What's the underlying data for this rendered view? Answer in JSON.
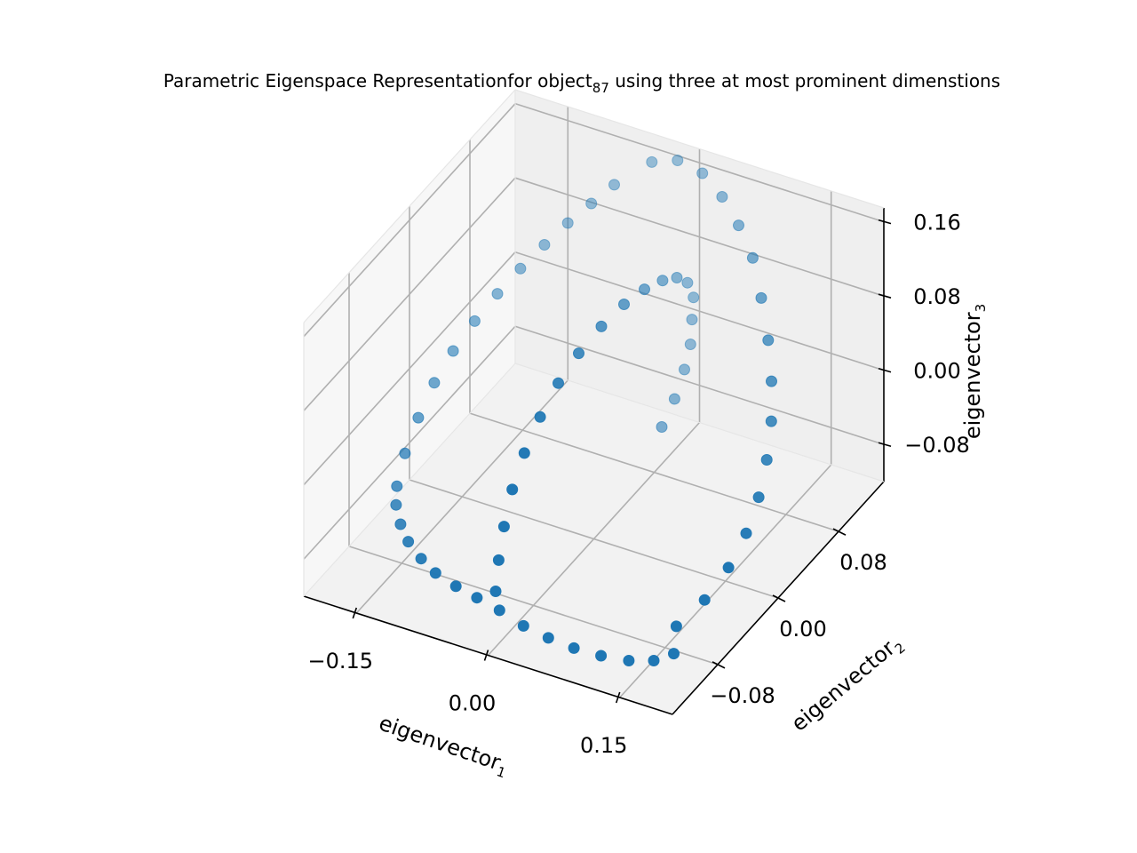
{
  "chart_data": {
    "type": "scatter3d",
    "title": {
      "before": "Parametric Eigenspace Representationfor object",
      "sub": "87",
      "after": " using three at most prominent dimenstions"
    },
    "xlabel": {
      "base": "eigenvector",
      "sub": "1"
    },
    "ylabel": {
      "base": "eigenvector",
      "sub": "2"
    },
    "zlabel": {
      "base": "eigenvector",
      "sub": "3"
    },
    "xlim": [
      -0.21,
      0.21
    ],
    "ylim": [
      -0.14,
      0.14
    ],
    "zlim": [
      -0.12,
      0.175
    ],
    "xticks": [
      {
        "value": -0.15,
        "label": "−0.15"
      },
      {
        "value": 0.0,
        "label": "0.00"
      },
      {
        "value": 0.15,
        "label": "0.15"
      }
    ],
    "yticks": [
      {
        "value": -0.08,
        "label": "−0.08"
      },
      {
        "value": 0.0,
        "label": "0.00"
      },
      {
        "value": 0.08,
        "label": "0.08"
      }
    ],
    "zticks": [
      {
        "value": -0.08,
        "label": "−0.08"
      },
      {
        "value": 0.0,
        "label": "0.00"
      },
      {
        "value": 0.08,
        "label": "0.08"
      },
      {
        "value": 0.16,
        "label": "0.16"
      }
    ],
    "grid": true,
    "marker_color": "#1f77b4",
    "points": [
      [
        0.0,
        -0.13,
        -0.06
      ],
      [
        0.0,
        -0.126,
        -0.03
      ],
      [
        0.0,
        -0.119,
        0.0
      ],
      [
        0.0,
        -0.108,
        0.03
      ],
      [
        0.0,
        -0.092,
        0.055
      ],
      [
        0.0,
        -0.071,
        0.075
      ],
      [
        0.0,
        -0.047,
        0.09
      ],
      [
        0.0,
        -0.02,
        0.098
      ],
      [
        0.0,
        0.01,
        0.1
      ],
      [
        0.0,
        0.04,
        0.097
      ],
      [
        0.0,
        0.067,
        0.089
      ],
      [
        0.0,
        0.091,
        0.077
      ],
      [
        0.0,
        0.11,
        0.063
      ],
      [
        0.0,
        0.124,
        0.045
      ],
      [
        0.0,
        0.132,
        0.022
      ],
      [
        0.0,
        0.13,
        0.0
      ],
      [
        0.0,
        0.128,
        -0.025
      ],
      [
        0.0,
        0.12,
        -0.045
      ],
      [
        0.0,
        0.107,
        -0.065
      ],
      [
        0.0,
        0.09,
        -0.08
      ],
      [
        0.0,
        -0.125,
        -0.085
      ],
      [
        0.03,
        -0.128,
        -0.09
      ],
      [
        0.06,
        -0.13,
        -0.092
      ],
      [
        0.09,
        -0.131,
        -0.093
      ],
      [
        0.12,
        -0.13,
        -0.093
      ],
      [
        0.15,
        -0.128,
        -0.091
      ],
      [
        0.175,
        -0.124,
        -0.087
      ],
      [
        0.19,
        -0.115,
        -0.083
      ],
      [
        -0.03,
        -0.12,
        -0.085
      ],
      [
        -0.06,
        -0.113,
        -0.088
      ],
      [
        -0.09,
        -0.105,
        -0.09
      ],
      [
        -0.115,
        -0.095,
        -0.091
      ],
      [
        -0.14,
        -0.083,
        -0.091
      ],
      [
        -0.16,
        -0.07,
        -0.09
      ],
      [
        -0.178,
        -0.055,
        -0.088
      ],
      [
        -0.19,
        -0.04,
        -0.085
      ],
      [
        -0.198,
        -0.02,
        -0.07
      ],
      [
        -0.2,
        0.0,
        -0.05
      ],
      [
        -0.199,
        0.02,
        -0.03
      ],
      [
        -0.193,
        0.038,
        -0.01
      ],
      [
        -0.183,
        0.055,
        0.01
      ],
      [
        -0.17,
        0.07,
        0.03
      ],
      [
        -0.155,
        0.083,
        0.05
      ],
      [
        -0.138,
        0.095,
        0.07
      ],
      [
        -0.12,
        0.105,
        0.09
      ],
      [
        -0.1,
        0.113,
        0.11
      ],
      [
        -0.08,
        0.12,
        0.13
      ],
      [
        0.18,
        -0.1,
        -0.07
      ],
      [
        0.195,
        -0.08,
        -0.055
      ],
      [
        0.205,
        -0.06,
        -0.035
      ],
      [
        0.208,
        -0.04,
        -0.015
      ],
      [
        0.205,
        -0.02,
        0.005
      ],
      [
        0.197,
        0.0,
        0.025
      ],
      [
        0.185,
        0.02,
        0.045
      ],
      [
        0.168,
        0.04,
        0.065
      ],
      [
        0.147,
        0.06,
        0.085
      ],
      [
        0.122,
        0.08,
        0.105
      ],
      [
        0.095,
        0.1,
        0.122
      ],
      [
        0.066,
        0.115,
        0.135
      ],
      [
        0.036,
        0.128,
        0.145
      ],
      [
        0.005,
        0.138,
        0.152
      ],
      [
        -0.025,
        0.14,
        0.155
      ],
      [
        -0.05,
        0.135,
        0.15
      ]
    ]
  }
}
